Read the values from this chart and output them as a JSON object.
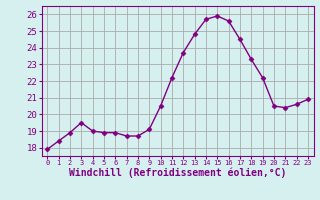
{
  "x": [
    0,
    1,
    2,
    3,
    4,
    5,
    6,
    7,
    8,
    9,
    10,
    11,
    12,
    13,
    14,
    15,
    16,
    17,
    18,
    19,
    20,
    21,
    22,
    23
  ],
  "y": [
    17.9,
    18.4,
    18.9,
    19.5,
    19.0,
    18.9,
    18.9,
    18.7,
    18.7,
    19.1,
    20.5,
    22.2,
    23.7,
    24.8,
    25.7,
    25.9,
    25.6,
    24.5,
    23.3,
    22.2,
    20.5,
    20.4,
    20.6,
    20.9
  ],
  "line_color": "#800080",
  "marker": "D",
  "marker_size": 2.5,
  "bg_color": "#d6f0f0",
  "grid_color": "#aaaaaa",
  "xlabel": "Windchill (Refroidissement éolien,°C)",
  "xlabel_fontsize": 7,
  "ylim": [
    17.5,
    26.5
  ],
  "yticks": [
    18,
    19,
    20,
    21,
    22,
    23,
    24,
    25,
    26
  ],
  "xlim": [
    -0.5,
    23.5
  ],
  "spine_color": "#800080",
  "tick_color": "#800080",
  "label_color": "#800080"
}
